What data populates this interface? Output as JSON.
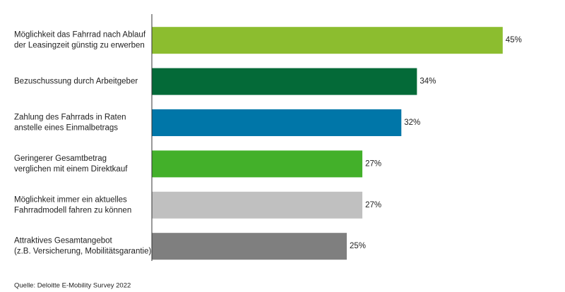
{
  "chart_data": {
    "type": "hbar",
    "categories": [
      [
        "Möglichkeit das Fahrrad nach Ablauf",
        "der Leasingzeit günstig zu erwerben"
      ],
      [
        "Bezuschussung durch Arbeitgeber"
      ],
      [
        "Zahlung des Fahrrads in Raten",
        "anstelle eines Einmalbetrags"
      ],
      [
        "Geringerer Gesamtbetrag",
        "verglichen mit einem Direktkauf"
      ],
      [
        "Möglichkeit immer ein aktuelles",
        "Fahrradmodell fahren zu können"
      ],
      [
        "Attraktives Gesamtangebot",
        "(z.B. Versicherung, Mobilitätsgarantie)"
      ]
    ],
    "values": [
      45,
      34,
      32,
      27,
      27,
      25
    ],
    "value_labels": [
      "45%",
      "34%",
      "32%",
      "27%",
      "27%",
      "25%"
    ],
    "colors": [
      "#8cbd2f",
      "#046a38",
      "#0076a8",
      "#43b02a",
      "#c0c0c0",
      "#7f7f7f"
    ],
    "xlim": [
      0,
      50
    ],
    "source": "Quelle: Deloitte E-Mobility Survey 2022"
  }
}
